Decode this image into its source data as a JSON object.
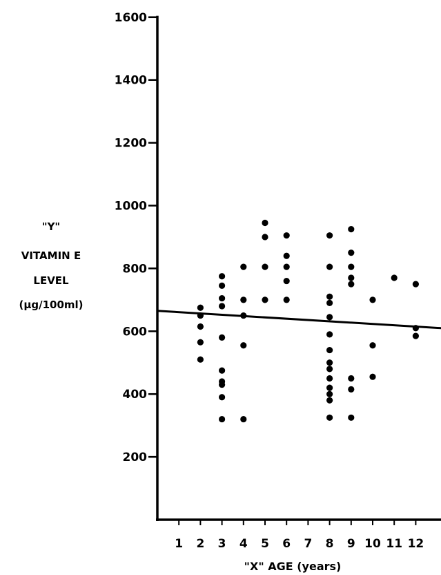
{
  "chart_data": {
    "type": "scatter",
    "title": "",
    "xlabel": "\"X\" AGE (years)",
    "ylabel_lines": [
      "\"Y\"",
      "VITAMIN E",
      "LEVEL",
      "(µg/100ml)"
    ],
    "xlim": [
      0,
      13
    ],
    "ylim": [
      0,
      1600
    ],
    "x_ticks": [
      1,
      2,
      3,
      4,
      5,
      6,
      7,
      8,
      9,
      10,
      11,
      12
    ],
    "y_ticks": [
      200,
      400,
      600,
      800,
      1000,
      1200,
      1400,
      1600
    ],
    "grid": false,
    "legend": "none",
    "series": [
      {
        "points": [
          [
            2,
            675
          ],
          [
            2,
            650
          ],
          [
            2,
            615
          ],
          [
            2,
            565
          ],
          [
            2,
            510
          ],
          [
            3,
            775
          ],
          [
            3,
            745
          ],
          [
            3,
            705
          ],
          [
            3,
            680
          ],
          [
            3,
            580
          ],
          [
            3,
            475
          ],
          [
            3,
            440
          ],
          [
            3,
            430
          ],
          [
            3,
            390
          ],
          [
            3,
            320
          ],
          [
            4,
            805
          ],
          [
            4,
            700
          ],
          [
            4,
            650
          ],
          [
            4,
            555
          ],
          [
            4,
            320
          ],
          [
            5,
            945
          ],
          [
            5,
            900
          ],
          [
            5,
            805
          ],
          [
            5,
            700
          ],
          [
            6,
            905
          ],
          [
            6,
            840
          ],
          [
            6,
            805
          ],
          [
            6,
            760
          ],
          [
            6,
            700
          ],
          [
            8,
            905
          ],
          [
            8,
            805
          ],
          [
            8,
            710
          ],
          [
            8,
            690
          ],
          [
            8,
            645
          ],
          [
            8,
            590
          ],
          [
            8,
            540
          ],
          [
            8,
            500
          ],
          [
            8,
            480
          ],
          [
            8,
            450
          ],
          [
            8,
            420
          ],
          [
            8,
            400
          ],
          [
            8,
            380
          ],
          [
            8,
            325
          ],
          [
            9,
            925
          ],
          [
            9,
            850
          ],
          [
            9,
            805
          ],
          [
            9,
            770
          ],
          [
            9,
            750
          ],
          [
            9,
            450
          ],
          [
            9,
            415
          ],
          [
            9,
            325
          ],
          [
            10,
            700
          ],
          [
            10,
            555
          ],
          [
            10,
            455
          ],
          [
            11,
            770
          ],
          [
            12,
            750
          ],
          [
            12,
            610
          ],
          [
            12,
            585
          ]
        ]
      }
    ],
    "trend_line": {
      "x": [
        0,
        13
      ],
      "y": [
        665,
        610
      ]
    }
  }
}
